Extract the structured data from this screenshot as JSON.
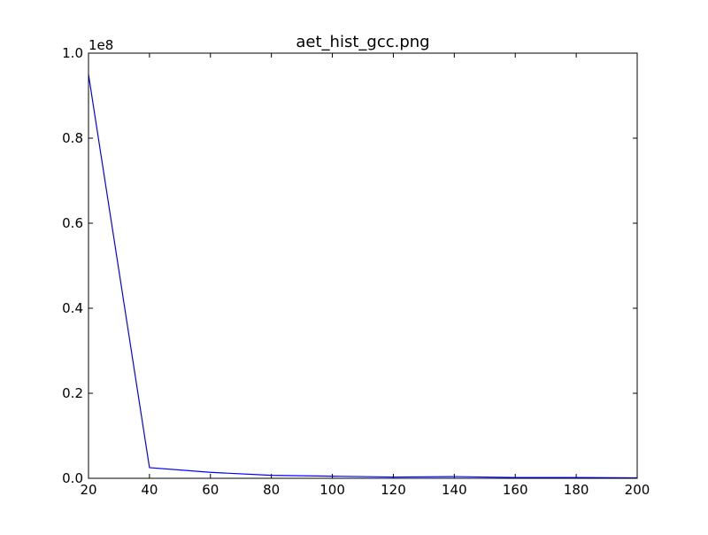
{
  "chart_data": {
    "type": "line",
    "title": "aet_hist_gcc.png",
    "xlabel": "",
    "ylabel": "",
    "y_multiplier_label": "1e8",
    "xlim": [
      20,
      200
    ],
    "ylim": [
      0,
      1.0
    ],
    "x_ticks": [
      "20",
      "40",
      "60",
      "80",
      "100",
      "120",
      "140",
      "160",
      "180",
      "200"
    ],
    "y_ticks": [
      "0.0",
      "0.2",
      "0.4",
      "0.6",
      "0.8",
      "1.0"
    ],
    "grid": false,
    "series": [
      {
        "color": "#0000ff",
        "x": [
          20,
          40,
          60,
          80,
          100,
          120,
          140,
          160,
          180,
          200
        ],
        "y": [
          0.95,
          0.025,
          0.014,
          0.007,
          0.005,
          0.003,
          0.004,
          0.002,
          0.002,
          0.001
        ]
      }
    ]
  }
}
